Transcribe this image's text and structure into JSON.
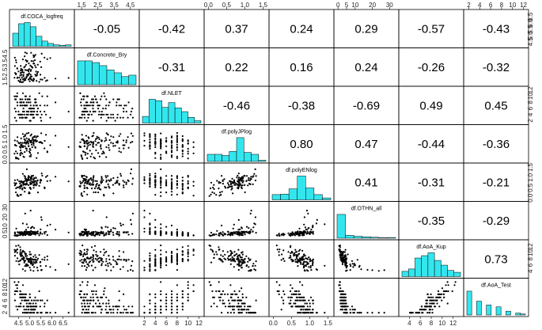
{
  "chart_data": {
    "type": "scatter",
    "layout": "scatterplot-matrix",
    "colors": {
      "histogram_fill": "#33E6EE",
      "point": "#000000",
      "panel_border": "#000000"
    },
    "variables": [
      {
        "name": "df.COCA_logfreq",
        "ticks": [
          "4.5",
          "5.0",
          "5.5",
          "6.0",
          "6.5"
        ],
        "tick_values": [
          4.5,
          5.0,
          5.5,
          6.0,
          6.5
        ],
        "range": [
          4.2,
          6.9
        ],
        "tick_sides": [
          "bottom",
          "right"
        ],
        "hist": [
          0.55,
          0.95,
          1.0,
          0.82,
          0.42,
          0.22,
          0.12,
          0.06,
          0.04,
          0.06
        ]
      },
      {
        "name": "df.Concrete_Bry",
        "ticks": [
          "1.5",
          "2.5",
          "3.5",
          "4.5"
        ],
        "tick_values": [
          1.5,
          2.5,
          3.5,
          4.5
        ],
        "range": [
          1.2,
          4.9
        ],
        "tick_sides": [
          "top",
          "left"
        ],
        "hist": [
          1.0,
          1.0,
          0.93,
          0.8,
          0.62,
          0.5,
          0.34,
          0.4
        ]
      },
      {
        "name": "df.NLET",
        "ticks": [
          "2",
          "4",
          "6",
          "8",
          "10",
          "12"
        ],
        "tick_values": [
          2,
          4,
          6,
          8,
          10,
          12
        ],
        "range": [
          1.5,
          12.5
        ],
        "tick_sides": [
          "bottom",
          "right"
        ],
        "hist": [
          0.28,
          1.0,
          0.94,
          0.66,
          0.86,
          0.64,
          0.48,
          0.24,
          0.1
        ]
      },
      {
        "name": "df.polyJPlog",
        "ticks": [
          "0.0",
          "0.5",
          "1.0",
          "1.5"
        ],
        "tick_values": [
          0,
          0.5,
          1.0,
          1.5
        ],
        "range": [
          -0.05,
          1.6
        ],
        "tick_sides": [
          "top",
          "left"
        ],
        "hist": [
          0.3,
          0.3,
          0.25,
          0.42,
          1.0,
          0.38,
          0.3,
          0.05
        ]
      },
      {
        "name": "df.polyENlog",
        "ticks": [
          "0.0",
          "0.5",
          "1.0",
          "1.5"
        ],
        "tick_values": [
          0,
          0.5,
          1.0,
          1.5
        ],
        "range": [
          -0.05,
          1.6
        ],
        "tick_sides": [
          "bottom",
          "right"
        ],
        "hist": [
          0.22,
          0.24,
          0.46,
          1.0,
          0.5,
          0.22,
          0.08
        ]
      },
      {
        "name": "df.OTHN_all",
        "ticks": [
          "0",
          "5",
          "10",
          "20",
          "30"
        ],
        "tick_values": [
          0,
          5,
          10,
          20,
          30
        ],
        "range": [
          -1,
          34
        ],
        "tick_sides": [
          "top",
          "left"
        ],
        "hist": [
          1.0,
          0.12,
          0.08,
          0.06,
          0.04,
          0.02,
          0.03
        ]
      },
      {
        "name": "df.AoA_Kup",
        "ticks": [
          "4",
          "6",
          "8",
          "10",
          "12"
        ],
        "tick_values": [
          4,
          6,
          8,
          10,
          12
        ],
        "range": [
          2.5,
          13.5
        ],
        "tick_sides": [
          "bottom",
          "right"
        ],
        "hist": [
          0.22,
          0.32,
          0.78,
          0.88,
          1.0,
          0.68,
          0.48,
          0.26,
          0.18
        ]
      },
      {
        "name": "df.AoA_Test",
        "ticks": [
          "2",
          "4",
          "6",
          "8",
          "10",
          "12"
        ],
        "tick_values": [
          2,
          4,
          6,
          8,
          10,
          12
        ],
        "range": [
          1.5,
          12.5
        ],
        "tick_sides": [
          "top",
          "left"
        ],
        "hist": [
          1.0,
          0,
          0.58,
          0,
          0.42,
          0,
          0.34,
          0,
          0.16,
          0,
          0.08,
          0.04
        ]
      }
    ],
    "correlations": [
      [
        null,
        "-0.05",
        "-0.42",
        "0.37",
        "0.24",
        "0.29",
        "-0.57",
        "-0.43"
      ],
      [
        null,
        null,
        "-0.31",
        "0.22",
        "0.16",
        "0.24",
        "-0.26",
        "-0.32"
      ],
      [
        null,
        null,
        null,
        "-0.46",
        "-0.38",
        "-0.69",
        "0.49",
        "0.45"
      ],
      [
        null,
        null,
        null,
        null,
        "0.80",
        "0.47",
        "-0.44",
        "-0.36"
      ],
      [
        null,
        null,
        null,
        null,
        null,
        "0.41",
        "-0.31",
        "-0.21"
      ],
      [
        null,
        null,
        null,
        null,
        null,
        null,
        "-0.35",
        "-0.29"
      ],
      [
        null,
        null,
        null,
        null,
        null,
        null,
        null,
        "0.73"
      ],
      [
        null,
        null,
        null,
        null,
        null,
        null,
        null,
        null
      ]
    ],
    "points_per_panel": 120
  }
}
